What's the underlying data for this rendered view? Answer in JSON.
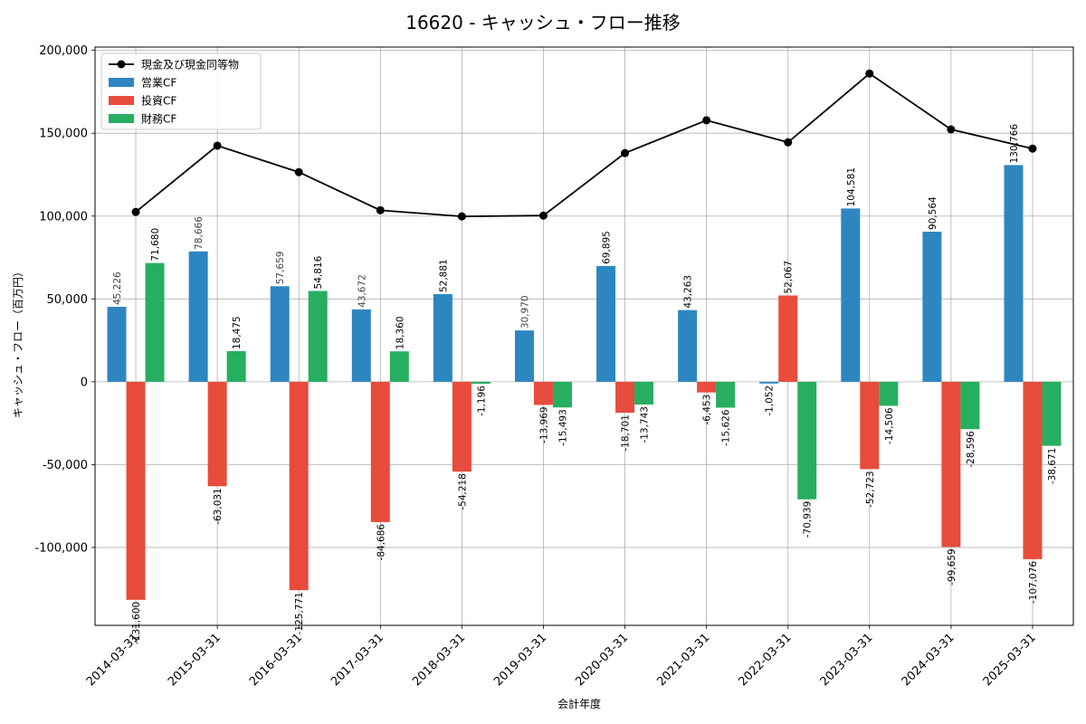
{
  "chart_data": {
    "type": "bar",
    "title": "16620 - キャッシュ・フロー推移",
    "xlabel": "会計年度",
    "ylabel": "キャッシュ・フロー（百万円）",
    "categories": [
      "2014-03-31",
      "2015-03-31",
      "2016-03-31",
      "2017-03-31",
      "2018-03-31",
      "2019-03-31",
      "2020-03-31",
      "2021-03-31",
      "2022-03-31",
      "2023-03-31",
      "2024-03-31",
      "2025-03-31"
    ],
    "ylim": [
      -147000,
      202000
    ],
    "yticks": [
      -100000,
      -50000,
      0,
      50000,
      100000,
      150000,
      200000
    ],
    "ytick_labels": [
      "-100,000",
      "-50,000",
      "0",
      "50,000",
      "100,000",
      "150,000",
      "200,000"
    ],
    "grid": true,
    "legend_position": "top-left",
    "series": [
      {
        "name": "営業CF",
        "kind": "bar",
        "color": "#2e86c1",
        "values": [
          45226,
          78666,
          57659,
          43672,
          52881,
          30970,
          69895,
          43263,
          -1052,
          104581,
          90564,
          130766
        ],
        "labels": [
          "45,226",
          "78,666",
          "57,659",
          "43,672",
          "52,881",
          "30,970",
          "69,895",
          "43,263",
          "-1,052",
          "104,581",
          "90,564",
          "130,766"
        ]
      },
      {
        "name": "投資CF",
        "kind": "bar",
        "color": "#e74c3c",
        "values": [
          -131600,
          -63031,
          -125771,
          -84686,
          -54218,
          -13969,
          -18701,
          -6453,
          52067,
          -52723,
          -99659,
          -107076
        ],
        "labels": [
          "-131,600",
          "-63,031",
          "-125,771",
          "-84,686",
          "-54,218",
          "-13,969",
          "-18,701",
          "-6,453",
          "52,067",
          "-52,723",
          "-99,659",
          "-107,076"
        ]
      },
      {
        "name": "財務CF",
        "kind": "bar",
        "color": "#27ae60",
        "values": [
          71680,
          18475,
          54816,
          18360,
          -1196,
          -15493,
          -13743,
          -15626,
          -70939,
          -14506,
          -28596,
          -38671
        ],
        "labels": [
          "71,680",
          "18,475",
          "54,816",
          "18,360",
          "-1,196",
          "-15,493",
          "-13,743",
          "-15,626",
          "-70,939",
          "-14,506",
          "-28,596",
          "-38,671"
        ]
      },
      {
        "name": "現金及び現金同等物",
        "kind": "line",
        "color": "#000000",
        "values": [
          102500,
          142500,
          126500,
          103500,
          99800,
          100300,
          138000,
          157800,
          144500,
          186000,
          152300,
          140700
        ]
      }
    ]
  }
}
